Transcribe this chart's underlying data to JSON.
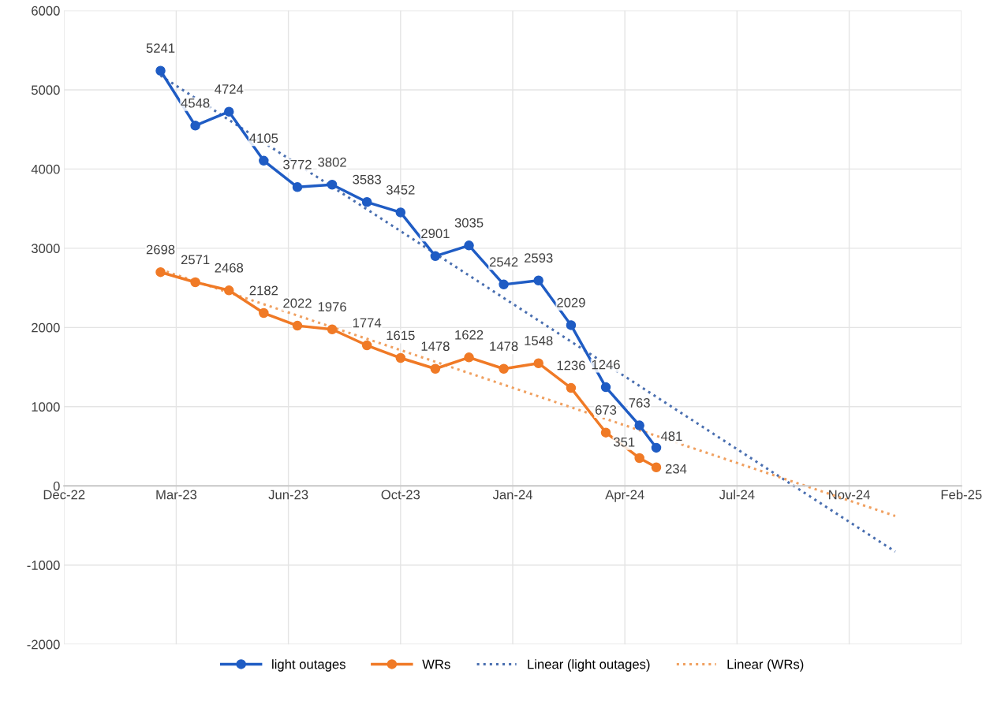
{
  "chart_data": {
    "type": "line",
    "x": [
      "2023-03-01",
      "2023-04-01",
      "2023-05-01",
      "2023-06-01",
      "2023-07-01",
      "2023-08-01",
      "2023-09-01",
      "2023-10-01",
      "2023-11-01",
      "2023-12-01",
      "2024-01-01",
      "2024-02-01",
      "2024-03-01",
      "2024-04-01",
      "2024-05-01",
      "2024-05-16"
    ],
    "series": [
      {
        "name": "light outages",
        "color": "#1f5cc4",
        "marker": "circle",
        "line_style": "solid",
        "values": [
          5241,
          4548,
          4724,
          4105,
          3772,
          3802,
          3583,
          3452,
          2901,
          3035,
          2542,
          2593,
          2029,
          1246,
          763,
          481
        ],
        "value_labels": [
          "5241",
          "4548",
          "4724",
          "4105",
          "3772",
          "3802",
          "3583",
          "3452",
          "2901",
          "3035",
          "2542",
          "2593",
          "2029",
          "1246",
          "763",
          "481"
        ]
      },
      {
        "name": "WRs",
        "color": "#f07a26",
        "marker": "circle",
        "line_style": "solid",
        "values": [
          2698,
          2571,
          2468,
          2182,
          2022,
          1976,
          1774,
          1615,
          1478,
          1622,
          1478,
          1548,
          1236,
          673,
          351,
          234
        ],
        "value_labels": [
          "2698",
          "2571",
          "2468",
          "2182",
          "2022",
          "1976",
          "1774",
          "1615",
          "1478",
          "1622",
          "1478",
          "1548",
          "1236",
          "673",
          "351",
          "234"
        ]
      },
      {
        "name": "Linear (light outages)",
        "color": "#4a6fb0",
        "marker": "none",
        "line_style": "dotted",
        "x": [
          "2023-03-01",
          "2024-12-15"
        ],
        "values": [
          5180,
          -830
        ]
      },
      {
        "name": "Linear (WRs)",
        "color": "#f0a060",
        "marker": "none",
        "line_style": "dotted",
        "x": [
          "2023-03-01",
          "2024-12-15"
        ],
        "values": [
          2730,
          -380
        ]
      }
    ],
    "xlim": [
      "2022-12-05",
      "2025-02-12"
    ],
    "xticks": [
      {
        "value": "2022-12-05",
        "label": "Dec-22"
      },
      {
        "value": "2023-03-15",
        "label": "Mar-23"
      },
      {
        "value": "2023-06-23",
        "label": "Jun-23"
      },
      {
        "value": "2023-10-01",
        "label": "Oct-23"
      },
      {
        "value": "2024-01-09",
        "label": "Jan-24"
      },
      {
        "value": "2024-04-18",
        "label": "Apr-24"
      },
      {
        "value": "2024-07-27",
        "label": "Jul-24"
      },
      {
        "value": "2024-11-04",
        "label": "Nov-24"
      },
      {
        "value": "2025-02-12",
        "label": "Feb-25"
      }
    ],
    "ylim": [
      -2000,
      6000
    ],
    "yticks": [
      -2000,
      -1000,
      0,
      1000,
      2000,
      3000,
      4000,
      5000,
      6000
    ],
    "grid": true,
    "legend": "bottom"
  }
}
